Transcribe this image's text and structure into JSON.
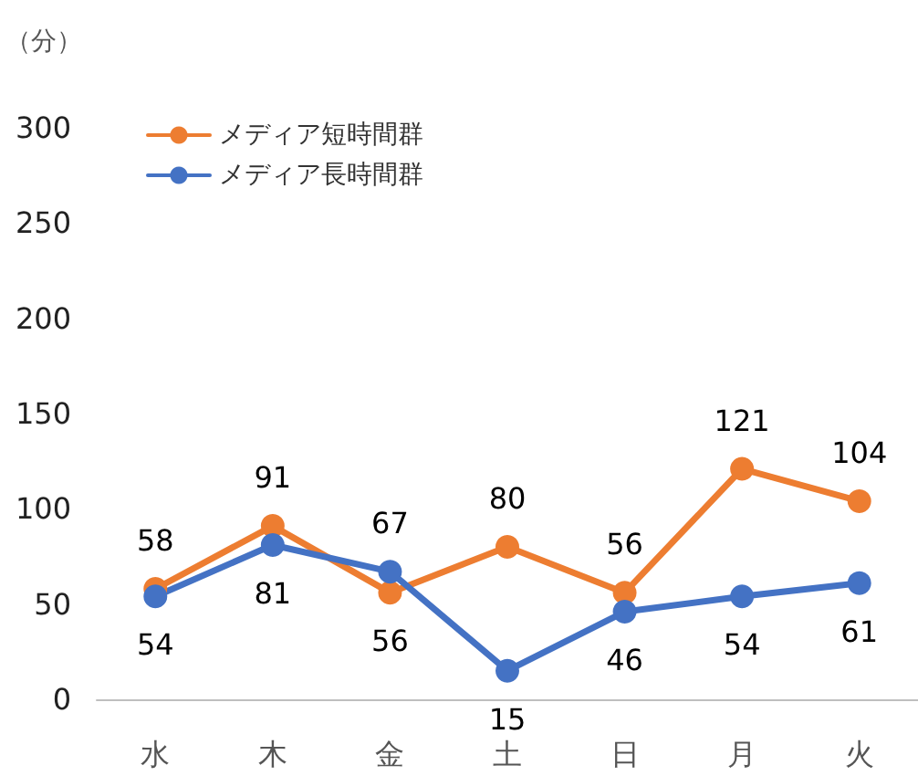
{
  "chart_data": {
    "type": "line",
    "ylabel": "（分）",
    "categories": [
      "水",
      "木",
      "金",
      "土",
      "日",
      "月",
      "火"
    ],
    "series": [
      {
        "name": "メディア短時間群",
        "color": "#ed7d31",
        "values": [
          58,
          91,
          56,
          80,
          56,
          121,
          104
        ]
      },
      {
        "name": "メディア長時間群",
        "color": "#4472c4",
        "values": [
          54,
          81,
          67,
          15,
          46,
          54,
          61
        ]
      }
    ],
    "ylim": [
      0,
      300
    ],
    "yticks": [
      0,
      50,
      100,
      150,
      200,
      250,
      300
    ],
    "grid": false,
    "legend": "top left",
    "marker": "circle",
    "line_style": "solid",
    "data_labels": true
  }
}
